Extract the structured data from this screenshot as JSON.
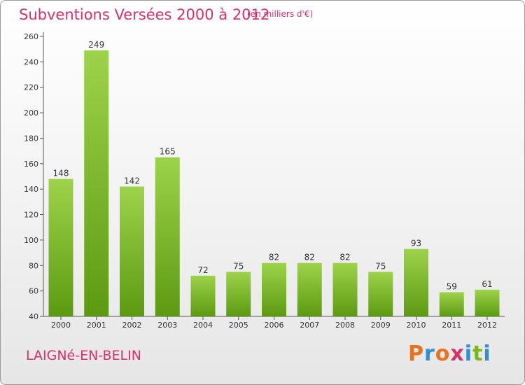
{
  "header": {
    "title": "Subventions Versées 2000 à 2012",
    "subtitle": "(en milliers d'€)"
  },
  "footer": {
    "commune": "LAIGNé-EN-BELIN",
    "brand": "Proxiti",
    "brand_colors": [
      "#e8731f",
      "#2a8fd4",
      "#e8731f",
      "#d8306a",
      "#2a8fd4",
      "#7ab51d",
      "#2a8fd4"
    ]
  },
  "colors": {
    "bar_light": "#9dd34a",
    "bar_dark": "#5c9a12",
    "title": "#d8306a",
    "axis": "#555555"
  },
  "chart_data": {
    "type": "bar",
    "categories": [
      "2000",
      "2001",
      "2002",
      "2003",
      "2004",
      "2005",
      "2006",
      "2007",
      "2008",
      "2009",
      "2010",
      "2011",
      "2012"
    ],
    "values": [
      148,
      249,
      142,
      165,
      72,
      75,
      82,
      82,
      82,
      75,
      93,
      59,
      61
    ],
    "yticks": [
      40,
      60,
      80,
      100,
      120,
      140,
      160,
      180,
      200,
      220,
      240,
      260
    ],
    "ylim": [
      40,
      260
    ],
    "grid": false
  }
}
